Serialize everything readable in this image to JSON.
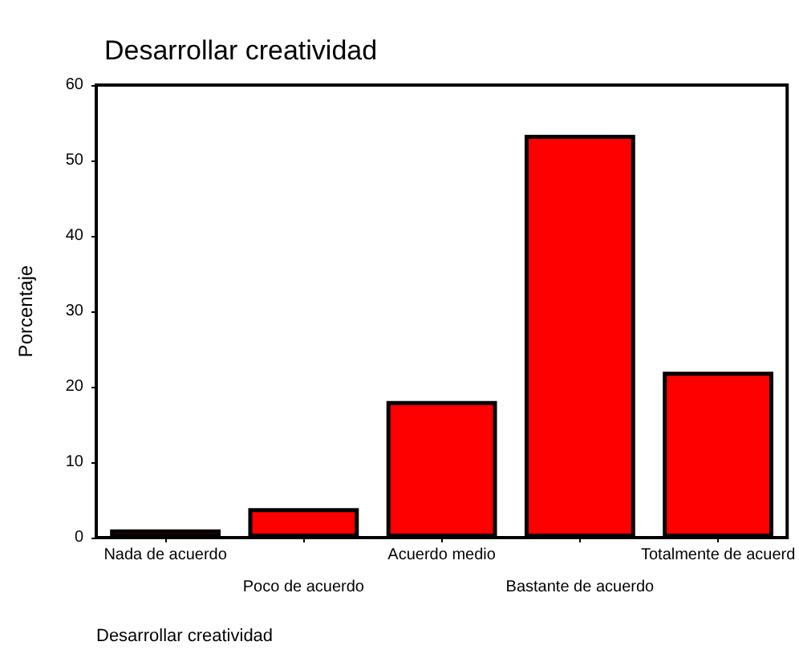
{
  "chart_data": {
    "type": "bar",
    "title": "Desarrollar creatividad",
    "xlabel": "Desarrollar creatividad",
    "ylabel": "Porcentaje",
    "categories": [
      "Nada de acuerdo",
      "Poco de acuerdo",
      "Acuerdo medio",
      "Bastante de acuerdo",
      "Totalmente de acuerd"
    ],
    "values": [
      1.1,
      3.9,
      18.1,
      53.4,
      22.0
    ],
    "color": "#ff0000",
    "ylim": [
      0,
      60
    ],
    "yticks": [
      0,
      10,
      20,
      30,
      40,
      50,
      60
    ],
    "grid": false
  }
}
